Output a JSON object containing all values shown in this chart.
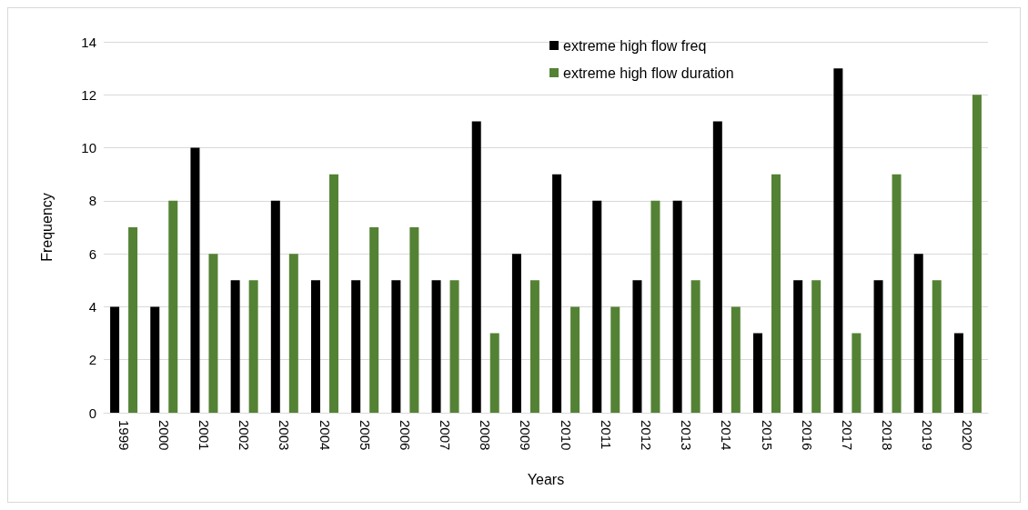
{
  "chart_data": {
    "type": "bar",
    "xlabel": "Years",
    "ylabel": "Frequency",
    "categories": [
      "1999",
      "2000",
      "2001",
      "2002",
      "2003",
      "2004",
      "2005",
      "2006",
      "2007",
      "2008",
      "2009",
      "2010",
      "2011",
      "2012",
      "2013",
      "2014",
      "2015",
      "2016",
      "2017",
      "2018",
      "2019",
      "2020"
    ],
    "series": [
      {
        "name": "extreme high flow freq",
        "color": "#000000",
        "values": [
          4,
          4,
          10,
          5,
          8,
          5,
          5,
          5,
          5,
          11,
          6,
          9,
          8,
          5,
          8,
          11,
          3,
          5,
          13,
          5,
          6,
          3
        ]
      },
      {
        "name": "extreme high flow duration",
        "color": "#548235",
        "values": [
          7,
          8,
          6,
          5,
          6,
          9,
          7,
          7,
          5,
          3,
          5,
          4,
          4,
          8,
          5,
          4,
          9,
          5,
          3,
          9,
          5,
          12
        ]
      }
    ],
    "ylim": [
      0,
      14
    ],
    "yticks": [
      0,
      2,
      4,
      6,
      8,
      10,
      12,
      14
    ],
    "grid": "y",
    "legend": "top"
  }
}
